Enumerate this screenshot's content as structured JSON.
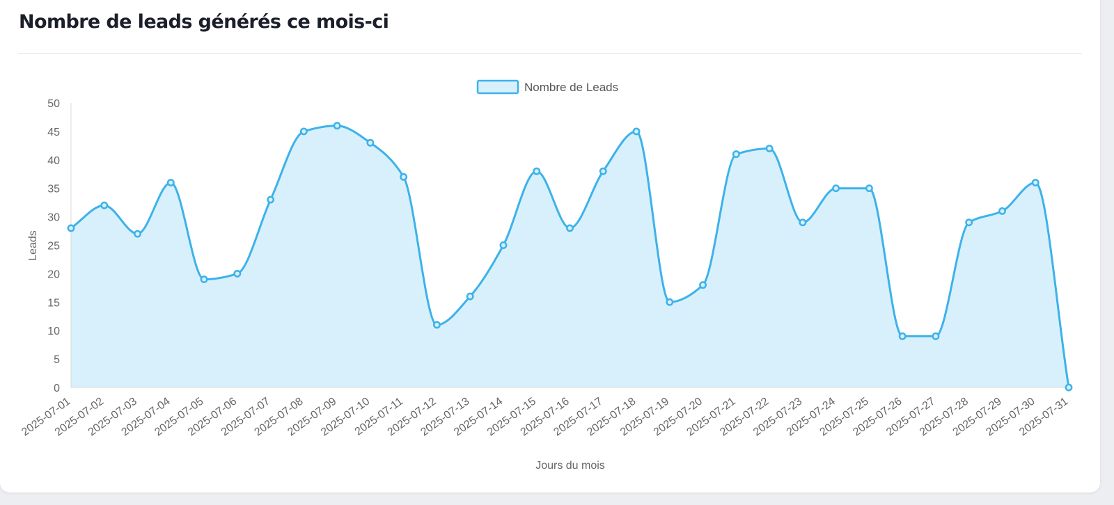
{
  "card": {
    "title": "Nombre de leads générés ce mois-ci"
  },
  "colors": {
    "line": "#3db2ea",
    "fill": "#d8f0fc",
    "axis": "#d9d9d9",
    "text": "#666666"
  },
  "chart_data": {
    "type": "area",
    "categories": [
      "2025-07-01",
      "2025-07-02",
      "2025-07-03",
      "2025-07-04",
      "2025-07-05",
      "2025-07-06",
      "2025-07-07",
      "2025-07-08",
      "2025-07-09",
      "2025-07-10",
      "2025-07-11",
      "2025-07-12",
      "2025-07-13",
      "2025-07-14",
      "2025-07-15",
      "2025-07-16",
      "2025-07-17",
      "2025-07-18",
      "2025-07-19",
      "2025-07-20",
      "2025-07-21",
      "2025-07-22",
      "2025-07-23",
      "2025-07-24",
      "2025-07-25",
      "2025-07-26",
      "2025-07-27",
      "2025-07-28",
      "2025-07-29",
      "2025-07-30",
      "2025-07-31"
    ],
    "series": [
      {
        "name": "Nombre de Leads",
        "values": [
          28,
          32,
          27,
          36,
          19,
          20,
          33,
          45,
          46,
          43,
          37,
          11,
          16,
          25,
          38,
          28,
          38,
          45,
          15,
          18,
          41,
          42,
          29,
          35,
          35,
          9,
          9,
          29,
          31,
          36,
          0
        ]
      }
    ],
    "xlabel": "Jours du mois",
    "ylabel": "Leads",
    "ylim": [
      0,
      50
    ],
    "yticks": [
      0,
      5,
      10,
      15,
      20,
      25,
      30,
      35,
      40,
      45,
      50
    ],
    "legend_position": "top-center",
    "grid": false,
    "smooth": true
  }
}
